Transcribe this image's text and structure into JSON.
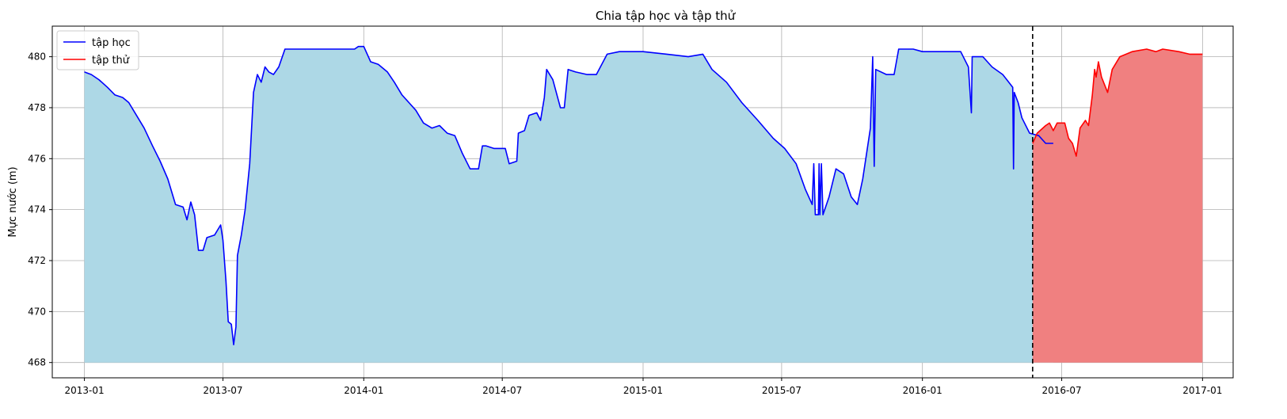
{
  "chart_data": {
    "type": "line",
    "title": "Chia tập học và tập thử",
    "xlabel": "",
    "ylabel": "Mực nước (m)",
    "x_range": [
      "2012-11-20",
      "2017-02-10"
    ],
    "ylim": [
      467.4,
      481.2
    ],
    "fill_baseline": 468,
    "grid": true,
    "legend_position": "top-left",
    "x_ticks": [
      "2013-01",
      "2013-07",
      "2014-01",
      "2014-07",
      "2015-01",
      "2015-07",
      "2016-01",
      "2016-07",
      "2017-01"
    ],
    "y_ticks": [
      468,
      470,
      472,
      474,
      476,
      478,
      480
    ],
    "split_date": "2016-05-24",
    "series": [
      {
        "name": "tập học",
        "line_color": "#0000ff",
        "fill_color": "#add8e6",
        "points": [
          [
            "2013-01-01",
            479.4
          ],
          [
            "2013-01-10",
            479.3
          ],
          [
            "2013-01-20",
            479.1
          ],
          [
            "2013-01-31",
            478.8
          ],
          [
            "2013-02-10",
            478.5
          ],
          [
            "2013-02-20",
            478.4
          ],
          [
            "2013-02-28",
            478.2
          ],
          [
            "2013-03-10",
            477.7
          ],
          [
            "2013-03-20",
            477.2
          ],
          [
            "2013-03-31",
            476.5
          ],
          [
            "2013-04-10",
            475.9
          ],
          [
            "2013-04-20",
            475.2
          ],
          [
            "2013-04-30",
            474.2
          ],
          [
            "2013-05-10",
            474.1
          ],
          [
            "2013-05-15",
            473.6
          ],
          [
            "2013-05-20",
            474.3
          ],
          [
            "2013-05-25",
            473.8
          ],
          [
            "2013-05-30",
            472.4
          ],
          [
            "2013-06-05",
            472.4
          ],
          [
            "2013-06-10",
            472.9
          ],
          [
            "2013-06-20",
            473.0
          ],
          [
            "2013-06-28",
            473.4
          ],
          [
            "2013-07-01",
            472.8
          ],
          [
            "2013-07-05",
            471.2
          ],
          [
            "2013-07-08",
            469.6
          ],
          [
            "2013-07-12",
            469.5
          ],
          [
            "2013-07-15",
            468.7
          ],
          [
            "2013-07-18",
            469.4
          ],
          [
            "2013-07-20",
            472.2
          ],
          [
            "2013-07-25",
            473.0
          ],
          [
            "2013-07-30",
            474.0
          ],
          [
            "2013-08-05",
            475.8
          ],
          [
            "2013-08-10",
            478.6
          ],
          [
            "2013-08-15",
            479.3
          ],
          [
            "2013-08-20",
            479.0
          ],
          [
            "2013-08-25",
            479.6
          ],
          [
            "2013-08-30",
            479.4
          ],
          [
            "2013-09-05",
            479.3
          ],
          [
            "2013-09-12",
            479.6
          ],
          [
            "2013-09-20",
            480.3
          ],
          [
            "2013-10-01",
            480.3
          ],
          [
            "2013-10-20",
            480.3
          ],
          [
            "2013-11-20",
            480.3
          ],
          [
            "2013-12-10",
            480.3
          ],
          [
            "2013-12-20",
            480.3
          ],
          [
            "2013-12-25",
            480.4
          ],
          [
            "2014-01-01",
            480.4
          ],
          [
            "2014-01-10",
            479.8
          ],
          [
            "2014-01-20",
            479.7
          ],
          [
            "2014-02-01",
            479.4
          ],
          [
            "2014-02-10",
            479.0
          ],
          [
            "2014-02-20",
            478.5
          ],
          [
            "2014-03-01",
            478.2
          ],
          [
            "2014-03-10",
            477.9
          ],
          [
            "2014-03-20",
            477.4
          ],
          [
            "2014-03-31",
            477.2
          ],
          [
            "2014-04-10",
            477.3
          ],
          [
            "2014-04-20",
            477.0
          ],
          [
            "2014-04-30",
            476.9
          ],
          [
            "2014-05-10",
            476.2
          ],
          [
            "2014-05-20",
            475.6
          ],
          [
            "2014-05-31",
            475.6
          ],
          [
            "2014-06-05",
            476.5
          ],
          [
            "2014-06-10",
            476.5
          ],
          [
            "2014-06-20",
            476.4
          ],
          [
            "2014-06-30",
            476.4
          ],
          [
            "2014-07-05",
            476.4
          ],
          [
            "2014-07-10",
            475.8
          ],
          [
            "2014-07-20",
            475.9
          ],
          [
            "2014-07-22",
            477.0
          ],
          [
            "2014-07-30",
            477.1
          ],
          [
            "2014-08-05",
            477.7
          ],
          [
            "2014-08-15",
            477.8
          ],
          [
            "2014-08-20",
            477.5
          ],
          [
            "2014-08-25",
            478.4
          ],
          [
            "2014-08-28",
            479.5
          ],
          [
            "2014-09-05",
            479.1
          ],
          [
            "2014-09-15",
            478.0
          ],
          [
            "2014-09-20",
            478.0
          ],
          [
            "2014-09-25",
            479.5
          ],
          [
            "2014-10-05",
            479.4
          ],
          [
            "2014-10-20",
            479.3
          ],
          [
            "2014-11-01",
            479.3
          ],
          [
            "2014-11-15",
            480.1
          ],
          [
            "2014-12-01",
            480.2
          ],
          [
            "2015-01-01",
            480.2
          ],
          [
            "2015-02-01",
            480.1
          ],
          [
            "2015-03-01",
            480.0
          ],
          [
            "2015-03-20",
            480.1
          ],
          [
            "2015-04-01",
            479.5
          ],
          [
            "2015-04-20",
            479.0
          ],
          [
            "2015-05-10",
            478.2
          ],
          [
            "2015-05-31",
            477.5
          ],
          [
            "2015-06-20",
            476.8
          ],
          [
            "2015-07-05",
            476.4
          ],
          [
            "2015-07-20",
            475.8
          ],
          [
            "2015-08-01",
            474.8
          ],
          [
            "2015-08-10",
            474.2
          ],
          [
            "2015-08-12",
            475.8
          ],
          [
            "2015-08-14",
            473.8
          ],
          [
            "2015-08-18",
            473.8
          ],
          [
            "2015-08-19",
            475.8
          ],
          [
            "2015-08-20",
            473.8
          ],
          [
            "2015-08-22",
            475.8
          ],
          [
            "2015-08-24",
            473.8
          ],
          [
            "2015-09-01",
            474.5
          ],
          [
            "2015-09-10",
            475.6
          ],
          [
            "2015-09-20",
            475.4
          ],
          [
            "2015-09-30",
            474.5
          ],
          [
            "2015-10-08",
            474.2
          ],
          [
            "2015-10-15",
            475.2
          ],
          [
            "2015-10-25",
            477.2
          ],
          [
            "2015-10-28",
            480.0
          ],
          [
            "2015-10-30",
            475.7
          ],
          [
            "2015-11-01",
            479.5
          ],
          [
            "2015-11-15",
            479.3
          ],
          [
            "2015-11-25",
            479.3
          ],
          [
            "2015-12-01",
            480.3
          ],
          [
            "2015-12-20",
            480.3
          ],
          [
            "2016-01-01",
            480.2
          ],
          [
            "2016-01-20",
            480.2
          ],
          [
            "2016-02-10",
            480.2
          ],
          [
            "2016-02-20",
            480.2
          ],
          [
            "2016-03-01",
            479.6
          ],
          [
            "2016-03-05",
            477.8
          ],
          [
            "2016-03-06",
            480.0
          ],
          [
            "2016-03-20",
            480.0
          ],
          [
            "2016-04-01",
            479.6
          ],
          [
            "2016-04-15",
            479.3
          ],
          [
            "2016-04-28",
            478.8
          ],
          [
            "2016-04-29",
            475.6
          ],
          [
            "2016-04-30",
            478.6
          ],
          [
            "2016-05-05",
            478.2
          ],
          [
            "2016-05-10",
            477.6
          ],
          [
            "2016-05-20",
            477.0
          ],
          [
            "2016-06-01",
            476.9
          ],
          [
            "2016-06-10",
            476.6
          ],
          [
            "2016-06-20",
            476.6
          ]
        ]
      },
      {
        "name": "tập thử",
        "line_color": "#ff0000",
        "fill_color": "#f08080",
        "points": [
          [
            "2016-05-24",
            476.6
          ],
          [
            "2016-05-30",
            477.0
          ],
          [
            "2016-06-10",
            477.3
          ],
          [
            "2016-06-15",
            477.4
          ],
          [
            "2016-06-20",
            477.1
          ],
          [
            "2016-06-25",
            477.4
          ],
          [
            "2016-07-05",
            477.4
          ],
          [
            "2016-07-10",
            476.8
          ],
          [
            "2016-07-15",
            476.6
          ],
          [
            "2016-07-20",
            476.1
          ],
          [
            "2016-07-25",
            477.2
          ],
          [
            "2016-08-01",
            477.5
          ],
          [
            "2016-08-05",
            477.3
          ],
          [
            "2016-08-10",
            478.5
          ],
          [
            "2016-08-13",
            479.5
          ],
          [
            "2016-08-15",
            479.2
          ],
          [
            "2016-08-18",
            479.8
          ],
          [
            "2016-08-22",
            479.2
          ],
          [
            "2016-08-30",
            478.6
          ],
          [
            "2016-09-05",
            479.5
          ],
          [
            "2016-09-15",
            480.0
          ],
          [
            "2016-10-01",
            480.2
          ],
          [
            "2016-10-20",
            480.3
          ],
          [
            "2016-11-01",
            480.2
          ],
          [
            "2016-11-10",
            480.3
          ],
          [
            "2016-12-01",
            480.2
          ],
          [
            "2016-12-15",
            480.1
          ],
          [
            "2017-01-01",
            480.1
          ]
        ]
      }
    ]
  }
}
